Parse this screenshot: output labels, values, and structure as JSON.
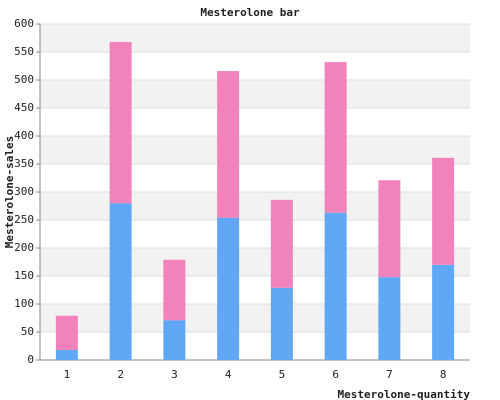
{
  "chart_data": {
    "type": "stacked-bar",
    "title": "Mesterolone bar",
    "x_label": "Mesterolone-quantity",
    "y_label": "Mesterolone-sales",
    "categories": [
      "1",
      "2",
      "3",
      "4",
      "5",
      "6",
      "7",
      "8"
    ],
    "series": [
      {
        "color": "#60a8f5",
        "values": [
          18,
          280,
          71,
          254,
          129,
          263,
          148,
          170
        ]
      },
      {
        "color": "#f282bc",
        "values": [
          61,
          288,
          108,
          262,
          157,
          269,
          173,
          191
        ]
      }
    ],
    "ylim": [
      0,
      600
    ],
    "yticks": [
      0,
      50,
      100,
      150,
      200,
      250,
      300,
      350,
      400,
      450,
      500,
      550,
      600
    ],
    "grid": true
  }
}
